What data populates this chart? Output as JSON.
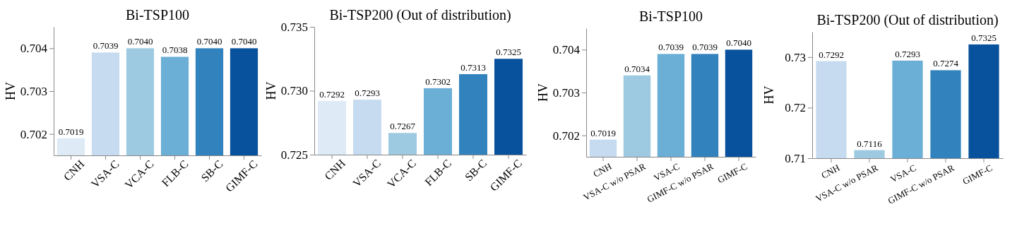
{
  "chart_data": [
    {
      "type": "bar",
      "title": "Bi-TSP100",
      "ylabel": "HV",
      "categories": [
        "CNH",
        "VSA-C",
        "VCA-C",
        "FLB-C",
        "SB-C",
        "GIMF-C"
      ],
      "values": [
        0.7019,
        0.7039,
        0.704,
        0.7038,
        0.704,
        0.704
      ],
      "colors": [
        "#deebf7",
        "#c6dbef",
        "#9ecae1",
        "#6baed6",
        "#3182bd",
        "#08519c"
      ],
      "value_labels": [
        "0.7019",
        "0.7039",
        "0.7040",
        "0.7038",
        "0.7040",
        "0.7040"
      ],
      "ylim": [
        0.7015,
        0.7045
      ],
      "yticks": [
        0.702,
        0.703,
        0.704
      ]
    },
    {
      "type": "bar",
      "title": "Bi-TSP200 (Out of distribution)",
      "ylabel": "HV",
      "categories": [
        "CNH",
        "VSA-C",
        "VCA-C",
        "FLB-C",
        "SB-C",
        "GIMF-C"
      ],
      "values": [
        0.7292,
        0.7293,
        0.7267,
        0.7302,
        0.7313,
        0.7325
      ],
      "colors": [
        "#deebf7",
        "#c6dbef",
        "#9ecae1",
        "#6baed6",
        "#3182bd",
        "#08519c"
      ],
      "value_labels": [
        "0.7292",
        "0.7293",
        "0.7267",
        "0.7302",
        "0.7313",
        "0.7325"
      ],
      "ylim": [
        0.725,
        0.735
      ],
      "yticks": [
        {
          "value": 0.725,
          "label": "0.725"
        },
        {
          "value": 0.73,
          "label": "0.730"
        },
        {
          "value": 0.735,
          "label": "0.735"
        }
      ]
    },
    {
      "type": "bar",
      "title": "Bi-TSP100",
      "ylabel": "HV",
      "categories": [
        "CNH",
        "VSA-C w/o PSAR",
        "VSA-C",
        "GIMF-C w/o PSAR",
        "GIMF-C"
      ],
      "values": [
        0.7019,
        0.7034,
        0.7039,
        0.7039,
        0.704
      ],
      "colors": [
        "#c6dbef",
        "#9ecae1",
        "#6baed6",
        "#3182bd",
        "#08519c"
      ],
      "value_labels": [
        "0.7019",
        "0.7034",
        "0.7039",
        "0.7039",
        "0.7040"
      ],
      "ylim": [
        0.7015,
        0.7045
      ],
      "yticks": [
        0.702,
        0.703,
        0.704
      ]
    },
    {
      "type": "bar",
      "title": "Bi-TSP200 (Out of distribution)",
      "ylabel": "HV",
      "categories": [
        "CNH",
        "VSA-C w/o PSAR",
        "VSA-C",
        "GIMF-C w/o PSAR",
        "GIMF-C"
      ],
      "values": [
        0.7292,
        0.7116,
        0.7293,
        0.7274,
        0.7325
      ],
      "colors": [
        "#c6dbef",
        "#9ecae1",
        "#6baed6",
        "#3182bd",
        "#08519c"
      ],
      "value_labels": [
        "0.7292",
        "0.7116",
        "0.7293",
        "0.7274",
        "0.7325"
      ],
      "ylim": [
        0.71,
        0.735
      ],
      "yticks": [
        0.71,
        0.72,
        0.73
      ]
    }
  ]
}
